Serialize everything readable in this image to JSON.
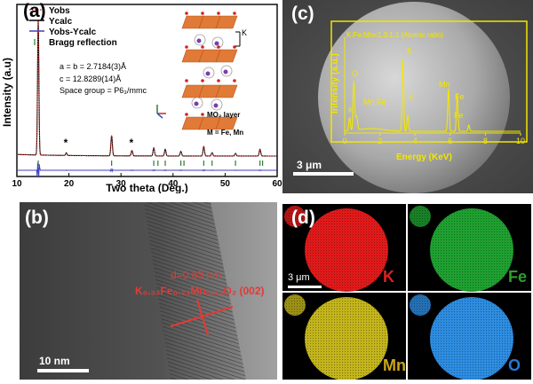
{
  "panel_a": {
    "label": "(a)",
    "legend": [
      {
        "name": "Yobs",
        "color": "#e53935",
        "style": "dotted"
      },
      {
        "name": "Ycalc",
        "color": "#000000",
        "style": "solid"
      },
      {
        "name": "Yobs-Ycalc",
        "color": "#3f3fbf",
        "style": "solid"
      },
      {
        "name": "Bragg reflection",
        "color": "#2e7d32",
        "style": "tick"
      }
    ],
    "params": {
      "ab": "a = b = 2.7184(3)Å",
      "c": "c = 12.8289(14)Å",
      "space_group": "Space group = P6₃/mmc"
    },
    "structure_labels": {
      "k": "K",
      "mo2": "MO₂ layer",
      "m": "M = Fe, Mn"
    },
    "asterisk": "*"
  },
  "panel_b": {
    "label": "(b)",
    "d_spacing": "d=0.63 nm",
    "plane": "K₀.₃₃Fe₀.₃₃Mn₀.₃₃O₂ (002)",
    "scale": "10 nm"
  },
  "panel_c": {
    "label": "(c)",
    "scale": "3 μm",
    "inset": {
      "ratio_text": "K:Fe:Mn=1.3:1:1 (Atomic ratio)",
      "xlabel": "Energy (KeV)",
      "ylabel": "Intensity (a.u.)",
      "peak_labels": [
        "O",
        "K",
        "Mn",
        "Fe",
        "K",
        "Mn,Fe",
        "Fe",
        "K"
      ],
      "x_ticks": [
        "0",
        "2",
        "4",
        "6",
        "8",
        "10"
      ]
    }
  },
  "panel_d": {
    "label": "(d)",
    "scale": "3 μm",
    "maps": [
      {
        "element": "K",
        "color": "#e01a1a",
        "text_color": "#e02020"
      },
      {
        "element": "Fe",
        "color": "#1fa030",
        "text_color": "#2e9e2e"
      },
      {
        "element": "Mn",
        "color": "#c2b41c",
        "text_color": "#caa51a"
      },
      {
        "element": "O",
        "color": "#2d8ce0",
        "text_color": "#2878d8"
      }
    ]
  },
  "chart_data": {
    "type": "line",
    "xlabel": "Two theta (Deg.)",
    "ylabel": "Intensity (a.u)",
    "xlim": [
      10,
      60
    ],
    "x_ticks": [
      10,
      20,
      30,
      40,
      50,
      60
    ],
    "series": [
      {
        "name": "Yobs",
        "x": [
          10,
          13.5,
          14.1,
          14.5,
          19.5,
          28.2,
          32.1,
          34.5,
          36.3,
          38.5,
          41.5,
          46,
          50,
          54,
          57,
          60
        ],
        "y": [
          0.0,
          0.02,
          1.0,
          0.03,
          0.02,
          0.15,
          0.04,
          0.03,
          0.06,
          0.05,
          0.04,
          0.07,
          0.02,
          0.02,
          0.05,
          0.02
        ]
      },
      {
        "name": "Ycalc",
        "x": [
          10,
          13.5,
          14.1,
          14.5,
          19.5,
          28.2,
          32.1,
          34.5,
          36.3,
          38.5,
          41.5,
          46,
          50,
          54,
          57,
          60
        ],
        "y": [
          0.0,
          0.02,
          1.0,
          0.03,
          0.02,
          0.15,
          0.04,
          0.03,
          0.06,
          0.05,
          0.04,
          0.07,
          0.02,
          0.02,
          0.05,
          0.02
        ]
      }
    ],
    "bragg_positions": [
      14.1,
      28.2,
      36.3,
      37.1,
      38.5,
      41.5,
      42.1,
      45.9,
      47.5,
      52.0,
      56.7,
      57.2
    ],
    "peaks": [
      {
        "x": 14.1,
        "h": 1.0
      },
      {
        "x": 28.2,
        "h": 0.15
      },
      {
        "x": 19.5,
        "h": 0.02
      },
      {
        "x": 32.1,
        "h": 0.04
      },
      {
        "x": 36.3,
        "h": 0.06
      },
      {
        "x": 38.5,
        "h": 0.05
      },
      {
        "x": 41.5,
        "h": 0.035
      },
      {
        "x": 45.9,
        "h": 0.07
      },
      {
        "x": 47.5,
        "h": 0.025
      },
      {
        "x": 52.0,
        "h": 0.02
      },
      {
        "x": 56.7,
        "h": 0.05
      }
    ]
  }
}
